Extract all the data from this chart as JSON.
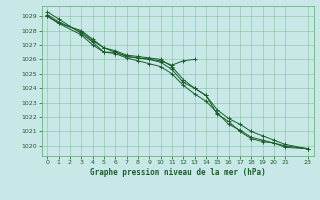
{
  "title": "Graphe pression niveau de la mer (hPa)",
  "xlim": [
    -0.5,
    23.5
  ],
  "ylim": [
    1019.3,
    1029.7
  ],
  "yticks": [
    1020,
    1021,
    1022,
    1023,
    1024,
    1025,
    1026,
    1027,
    1028,
    1029
  ],
  "xticks": [
    0,
    1,
    2,
    3,
    4,
    5,
    6,
    7,
    8,
    9,
    10,
    11,
    12,
    13,
    14,
    15,
    16,
    17,
    18,
    19,
    20,
    21,
    23
  ],
  "bg_color": "#c8e8e8",
  "grid_color": "#5aaa6a",
  "line_color": "#1a5e2a",
  "lines": [
    {
      "x": [
        0,
        1,
        3,
        4,
        5,
        6,
        7,
        8,
        9,
        10,
        11,
        12,
        13
      ],
      "y": [
        1029.3,
        1028.8,
        1027.8,
        1027.2,
        1026.5,
        1026.5,
        1026.2,
        1026.1,
        1026.0,
        1025.9,
        1025.6,
        1025.9,
        1026.0
      ]
    },
    {
      "x": [
        0,
        1,
        3,
        4,
        5,
        6,
        7,
        8,
        9,
        10,
        11,
        12,
        13,
        14,
        15,
        16,
        17,
        18,
        19,
        20,
        21,
        23
      ],
      "y": [
        1029.1,
        1028.6,
        1027.9,
        1027.3,
        1026.8,
        1026.5,
        1026.2,
        1026.1,
        1026.0,
        1025.8,
        1025.3,
        1024.4,
        1024.0,
        1023.5,
        1022.2,
        1021.7,
        1021.0,
        1020.5,
        1020.3,
        1020.2,
        1019.9,
        1019.8
      ]
    },
    {
      "x": [
        0,
        1,
        3,
        4,
        5,
        6,
        7,
        8,
        9,
        10,
        11,
        12,
        13,
        14,
        15,
        16,
        17,
        18,
        19,
        20,
        21,
        23
      ],
      "y": [
        1029.0,
        1028.5,
        1027.7,
        1027.0,
        1026.5,
        1026.4,
        1026.1,
        1025.9,
        1025.7,
        1025.5,
        1025.0,
        1024.2,
        1023.6,
        1023.1,
        1022.3,
        1021.5,
        1021.1,
        1020.6,
        1020.4,
        1020.2,
        1020.0,
        1019.8
      ]
    },
    {
      "x": [
        0,
        1,
        3,
        4,
        5,
        6,
        7,
        8,
        9,
        10,
        11,
        12,
        13,
        14,
        15,
        16,
        17,
        18,
        19,
        20,
        21,
        23
      ],
      "y": [
        1029.0,
        1028.5,
        1028.0,
        1027.4,
        1026.8,
        1026.6,
        1026.3,
        1026.2,
        1026.1,
        1026.0,
        1025.5,
        1024.6,
        1024.0,
        1023.5,
        1022.5,
        1021.9,
        1021.5,
        1021.0,
        1020.7,
        1020.4,
        1020.1,
        1019.8
      ]
    }
  ]
}
